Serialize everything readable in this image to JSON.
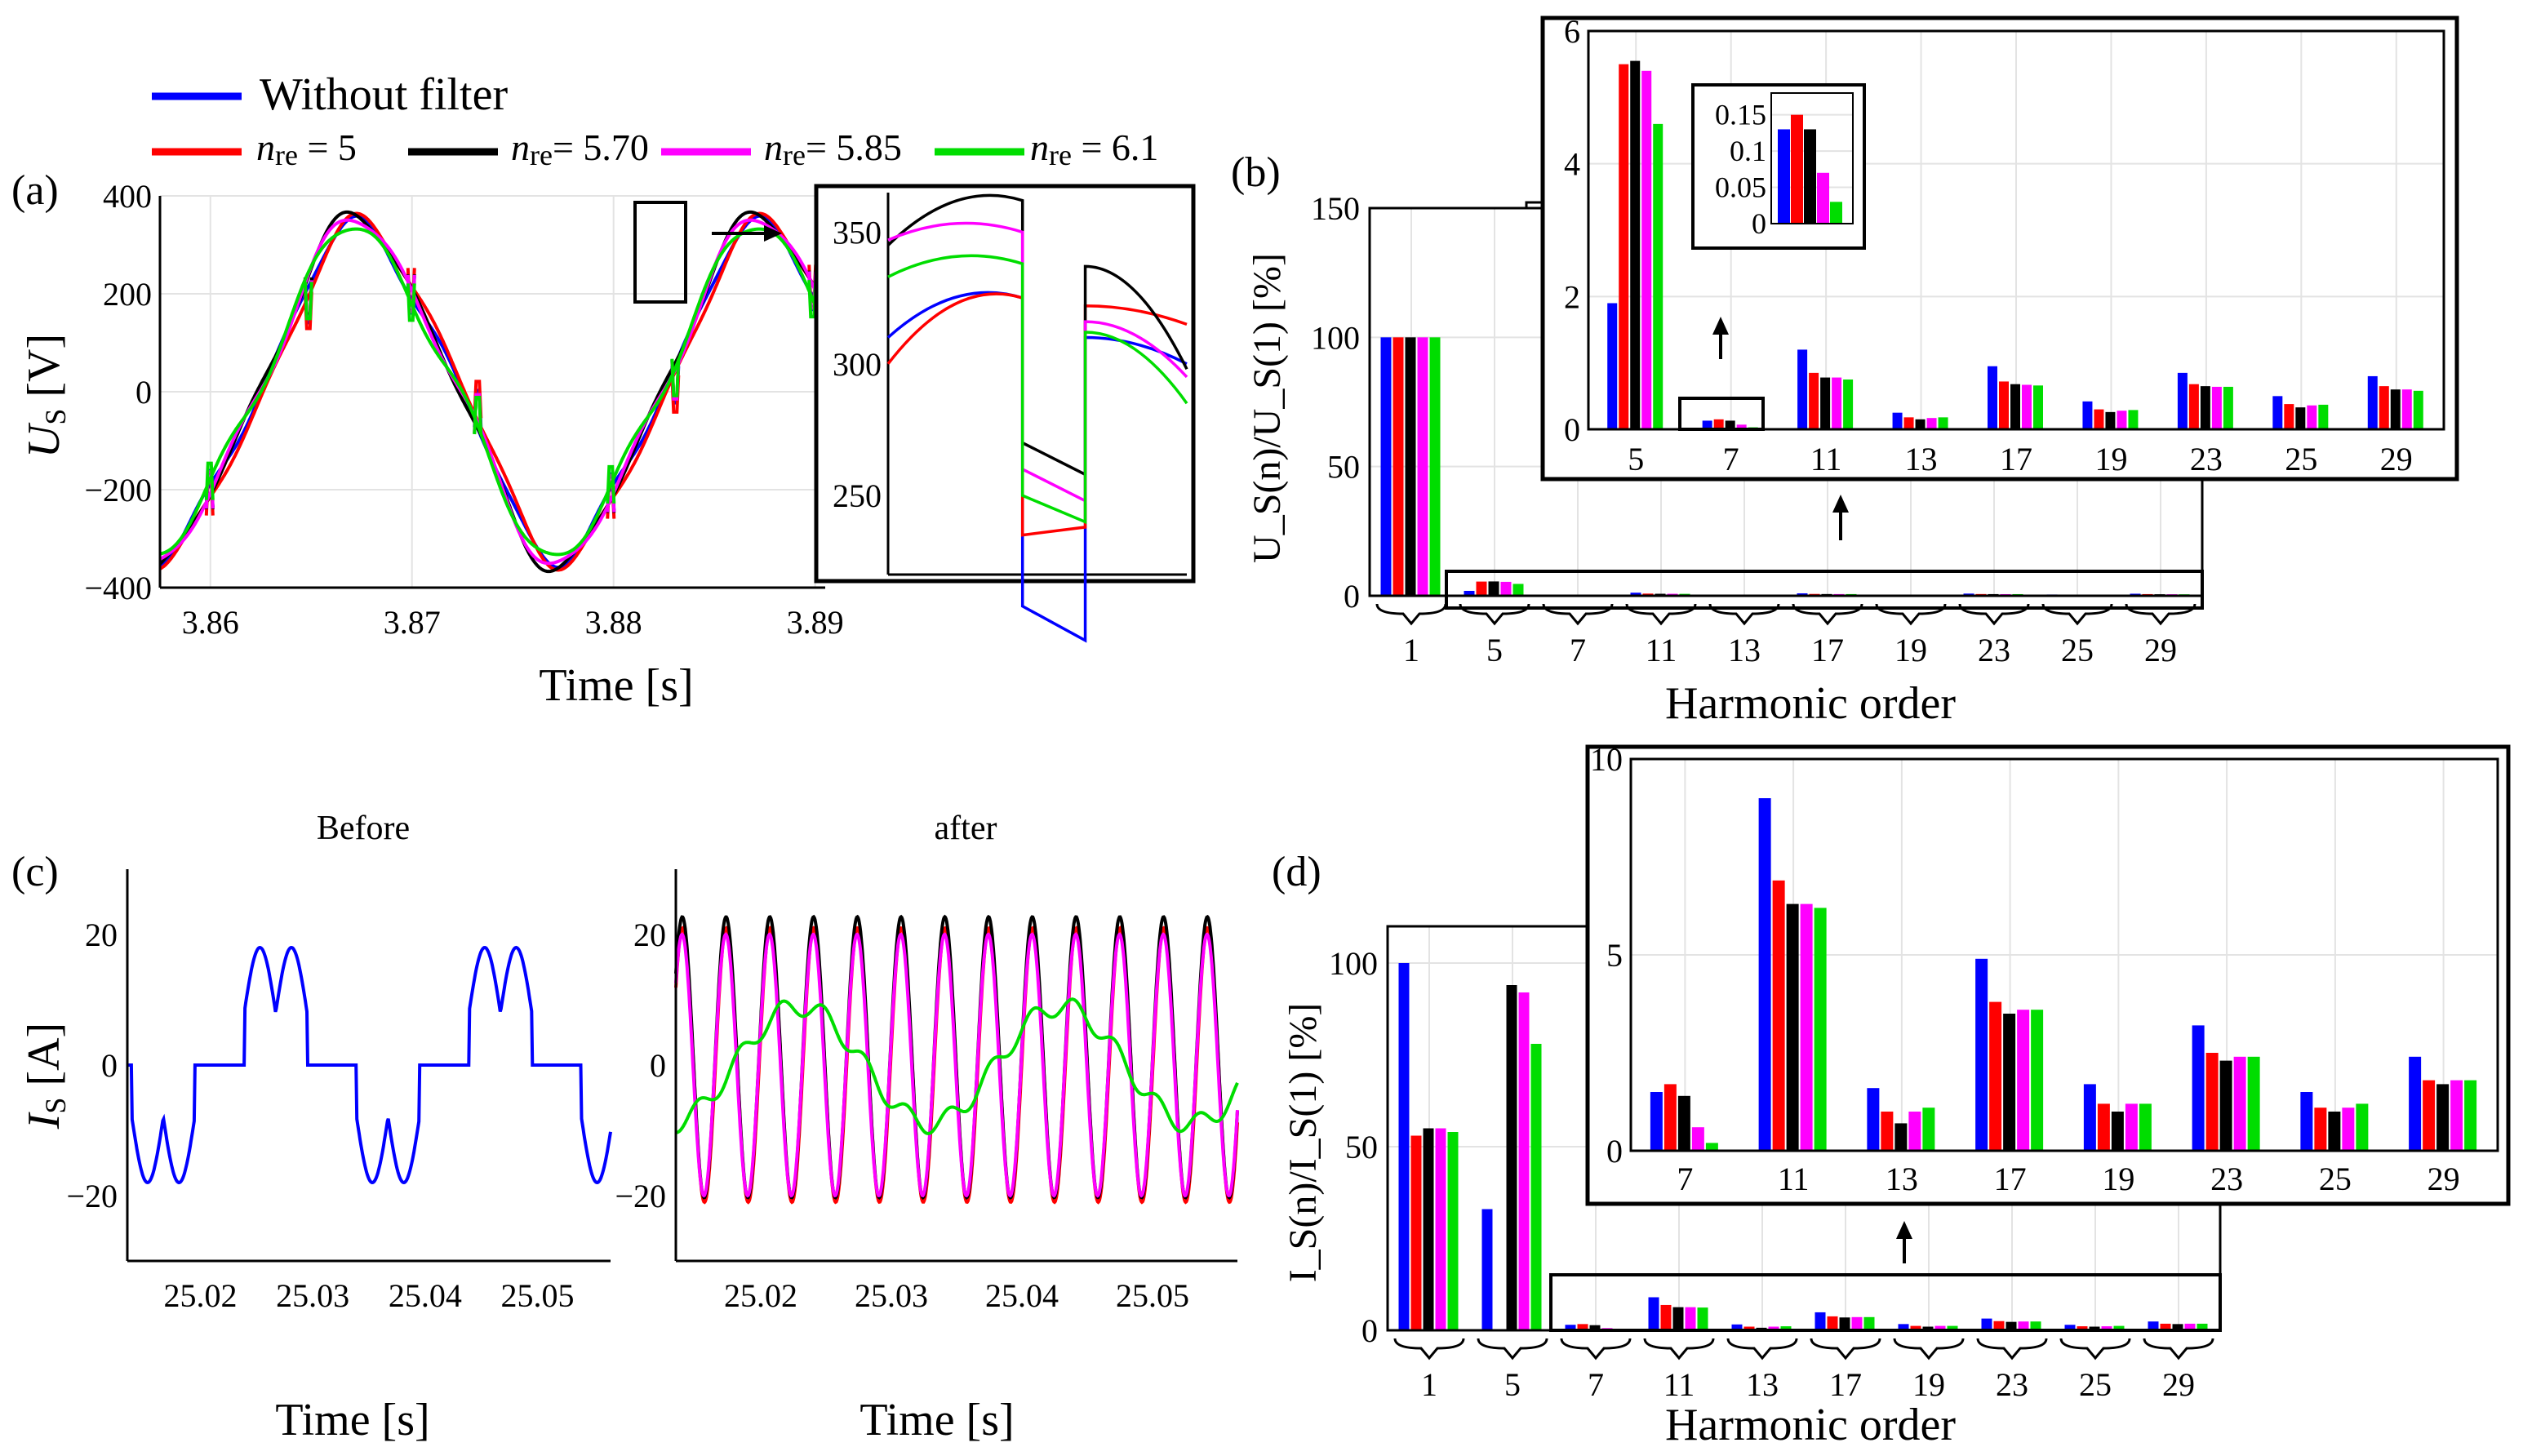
{
  "legend": {
    "items": [
      {
        "label": "Without filter",
        "color": "#0000ff"
      },
      {
        "label": "n_re = 5",
        "prefix": "n",
        "sub": "re",
        "value": " = 5",
        "color": "#ff0000"
      },
      {
        "label": "n_re = 5.70",
        "prefix": "n",
        "sub": "re",
        "value": "= 5.70",
        "color": "#000000"
      },
      {
        "label": "n_re = 5.85",
        "prefix": "n",
        "sub": "re",
        "value": "= 5.85",
        "color": "#ff00ff"
      },
      {
        "label": "n_re = 6.1",
        "prefix": "n",
        "sub": "re",
        "value": " = 6.1",
        "color": "#00dd00"
      }
    ]
  },
  "panel_labels": {
    "a": "(a)",
    "b": "(b)",
    "c": "(c)",
    "d": "(d)"
  },
  "chart_data": [
    {
      "id": "a",
      "type": "line",
      "title": "",
      "xlabel": "Time [s]",
      "ylabel_main": "U",
      "ylabel_sub": "S",
      "ylabel_unit": " [V]",
      "xlim": [
        3.8575,
        3.8905
      ],
      "ylim": [
        -400,
        400
      ],
      "xticks": [
        "3.86",
        "3.87",
        "3.88",
        "3.89"
      ],
      "xtick_values": [
        3.86,
        3.87,
        3.88,
        3.89
      ],
      "yticks": [
        "400",
        "200",
        "0",
        "−200",
        "−400"
      ],
      "ytick_values": [
        400,
        200,
        0,
        -200,
        -400
      ],
      "series": [
        {
          "name": "Without filter",
          "color": "#0000ff",
          "amplitude": 325,
          "phase": 0.0,
          "notches": true
        },
        {
          "name": "n_re = 5",
          "color": "#ff0000",
          "amplitude": 330,
          "phase": -0.06,
          "notches": true
        },
        {
          "name": "n_re = 5.70",
          "color": "#000000",
          "amplitude": 340,
          "phase": 0.03,
          "notches": true
        },
        {
          "name": "n_re = 5.85",
          "color": "#ff00ff",
          "amplitude": 335,
          "phase": 0.02,
          "notches": true
        },
        {
          "name": "n_re = 6.1",
          "color": "#00dd00",
          "amplitude": 320,
          "phase": 0.05,
          "notches": true
        }
      ],
      "inset": {
        "ylim": [
          220,
          365
        ],
        "yticks": [
          "350",
          "300",
          "250"
        ],
        "ytick_values": [
          350,
          300,
          250
        ],
        "series": [
          {
            "name": "Without filter",
            "color": "#0000ff",
            "before": [
              310,
              325
            ],
            "after": [
              208,
              195,
              310,
              300
            ]
          },
          {
            "name": "n_re = 5",
            "color": "#ff0000",
            "before": [
              300,
              325
            ],
            "after": [
              235,
              238,
              322,
              315
            ]
          },
          {
            "name": "n_re = 5.70",
            "color": "#000000",
            "before": [
              345,
              362
            ],
            "after": [
              270,
              258,
              337,
              298
            ]
          },
          {
            "name": "n_re = 5.85",
            "color": "#ff00ff",
            "before": [
              347,
              350
            ],
            "after": [
              260,
              248,
              316,
              295
            ]
          },
          {
            "name": "n_re = 6.1",
            "color": "#00dd00",
            "before": [
              333,
              338
            ],
            "after": [
              250,
              240,
              312,
              285
            ]
          }
        ]
      }
    },
    {
      "id": "b",
      "type": "bar",
      "xlabel": "Harmonic order",
      "ylabel": "U_S(n)/U_S(1) [%]",
      "ylim": [
        0,
        150
      ],
      "yticks": [
        "150",
        "100",
        "50",
        "0"
      ],
      "ytick_values": [
        150,
        100,
        50,
        0
      ],
      "categories": [
        "1",
        "5",
        "7",
        "11",
        "13",
        "17",
        "19",
        "23",
        "25",
        "29"
      ],
      "series": [
        {
          "name": "Without filter",
          "color": "#0000ff",
          "values": [
            100,
            1.9,
            0.13,
            1.2,
            0.25,
            0.95,
            0.42,
            0.85,
            0.5,
            0.8
          ]
        },
        {
          "name": "n_re = 5",
          "color": "#ff0000",
          "values": [
            100,
            5.5,
            0.15,
            0.85,
            0.18,
            0.72,
            0.3,
            0.68,
            0.38,
            0.65
          ]
        },
        {
          "name": "n_re = 5.70",
          "color": "#000000",
          "values": [
            100,
            5.55,
            0.13,
            0.78,
            0.15,
            0.68,
            0.26,
            0.65,
            0.33,
            0.6
          ]
        },
        {
          "name": "n_re = 5.85",
          "color": "#ff00ff",
          "values": [
            100,
            5.4,
            0.07,
            0.78,
            0.17,
            0.67,
            0.28,
            0.64,
            0.36,
            0.6
          ]
        },
        {
          "name": "n_re = 6.1",
          "color": "#00dd00",
          "values": [
            100,
            4.6,
            0.03,
            0.75,
            0.18,
            0.66,
            0.29,
            0.64,
            0.37,
            0.58
          ]
        }
      ],
      "zoom": {
        "categories": [
          "5",
          "7",
          "11",
          "13",
          "17",
          "19",
          "23",
          "25",
          "29"
        ],
        "ylim": [
          0,
          6
        ],
        "yticks": [
          "6",
          "4",
          "2",
          "0"
        ],
        "ytick_values": [
          6,
          4,
          2,
          0
        ]
      },
      "zoom7": {
        "ylim": [
          0,
          0.18
        ],
        "yticks": [
          "0.15",
          "0.1",
          "0.05",
          "0"
        ],
        "ytick_values": [
          0.15,
          0.1,
          0.05,
          0
        ],
        "values": [
          0.13,
          0.15,
          0.13,
          0.07,
          0.03
        ]
      }
    },
    {
      "id": "c1",
      "type": "line",
      "title": "Before",
      "xlabel": "Time [s]",
      "ylabel_main": "I",
      "ylabel_sub": "S",
      "ylabel_unit": " [A]",
      "xlim": [
        25.0135,
        25.0565
      ],
      "ylim": [
        -30,
        30
      ],
      "xticks": [
        "25.02",
        "25.03",
        "25.04",
        "25.05"
      ],
      "xtick_values": [
        25.02,
        25.03,
        25.04,
        25.05
      ],
      "yticks": [
        "20",
        "0",
        "−20"
      ],
      "ytick_values": [
        20,
        0,
        -20
      ],
      "series": [
        {
          "name": "Without filter",
          "color": "#0000ff",
          "peak": 18
        }
      ]
    },
    {
      "id": "c2",
      "type": "line",
      "title": "after",
      "xlabel": "Time [s]",
      "xlim": [
        25.0135,
        25.0565
      ],
      "ylim": [
        -30,
        30
      ],
      "xticks": [
        "25.02",
        "25.03",
        "25.04",
        "25.05"
      ],
      "xtick_values": [
        25.02,
        25.03,
        25.04,
        25.05
      ],
      "yticks": [
        "20",
        "0",
        "−20"
      ],
      "ytick_values": [
        20,
        0,
        -20
      ],
      "series": [
        {
          "name": "n_re = 5",
          "color": "#ff0000",
          "amplitude": 21
        },
        {
          "name": "n_re = 5.70",
          "color": "#000000",
          "amplitude": 21.5
        },
        {
          "name": "n_re = 5.85",
          "color": "#ff00ff",
          "amplitude": 20
        },
        {
          "name": "n_re = 6.1",
          "color": "#00dd00",
          "amplitude": 9
        }
      ]
    },
    {
      "id": "d",
      "type": "bar",
      "xlabel": "Harmonic order",
      "ylabel": "I_S(n)/I_S(1) [%]",
      "ylim": [
        0,
        110
      ],
      "yticks": [
        "100",
        "50",
        "0"
      ],
      "ytick_values": [
        100,
        50,
        0
      ],
      "categories": [
        "1",
        "5",
        "7",
        "11",
        "13",
        "17",
        "19",
        "23",
        "25",
        "29"
      ],
      "series": [
        {
          "name": "Without filter",
          "color": "#0000ff",
          "values": [
            100,
            33,
            1.5,
            9.0,
            1.6,
            4.9,
            1.7,
            3.2,
            1.5,
            2.4
          ]
        },
        {
          "name": "n_re = 5",
          "color": "#ff0000",
          "values": [
            53,
            0,
            1.7,
            6.9,
            1.0,
            3.8,
            1.2,
            2.5,
            1.1,
            1.8
          ]
        },
        {
          "name": "n_re = 5.70",
          "color": "#000000",
          "values": [
            55,
            94,
            1.4,
            6.3,
            0.7,
            3.5,
            1.0,
            2.3,
            1.0,
            1.7
          ]
        },
        {
          "name": "n_re = 5.85",
          "color": "#ff00ff",
          "values": [
            55,
            92,
            0.6,
            6.3,
            1.0,
            3.6,
            1.2,
            2.4,
            1.1,
            1.8
          ]
        },
        {
          "name": "n_re = 6.1",
          "color": "#00dd00",
          "values": [
            54,
            78,
            0.2,
            6.2,
            1.1,
            3.6,
            1.2,
            2.4,
            1.2,
            1.8
          ]
        }
      ],
      "zoom": {
        "categories": [
          "7",
          "11",
          "13",
          "17",
          "19",
          "23",
          "25",
          "29"
        ],
        "ylim": [
          0,
          10
        ],
        "yticks": [
          "10",
          "5",
          "0"
        ],
        "ytick_values": [
          10,
          5,
          0
        ]
      }
    }
  ]
}
